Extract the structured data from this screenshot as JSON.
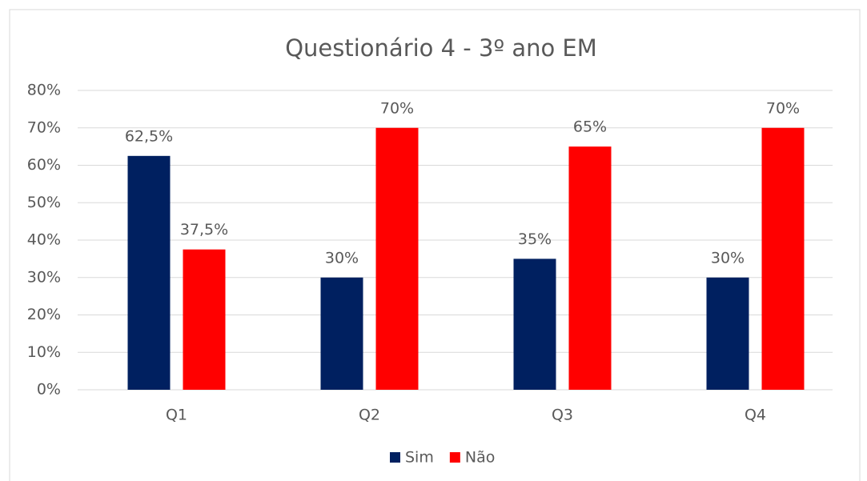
{
  "chart_data": {
    "type": "bar",
    "title": "Questionário 4 - 3º ano EM",
    "categories": [
      "Q1",
      "Q2",
      "Q3",
      "Q4"
    ],
    "series": [
      {
        "name": "Sim",
        "color": "#002060",
        "values": [
          62.5,
          30,
          35,
          30
        ],
        "value_labels": [
          "62,5%",
          "30%",
          "35%",
          "30%"
        ]
      },
      {
        "name": "Não",
        "color": "#ff0000",
        "values": [
          37.5,
          70,
          65,
          70
        ],
        "value_labels": [
          "37,5%",
          "70%",
          "65%",
          "70%"
        ]
      }
    ],
    "ylim": [
      0,
      80
    ],
    "yticks": [
      {
        "value": 0,
        "label": "0%"
      },
      {
        "value": 10,
        "label": "10%"
      },
      {
        "value": 20,
        "label": "20%"
      },
      {
        "value": 30,
        "label": "30%"
      },
      {
        "value": 40,
        "label": "40%"
      },
      {
        "value": 50,
        "label": "50%"
      },
      {
        "value": 60,
        "label": "60%"
      },
      {
        "value": 70,
        "label": "70%"
      },
      {
        "value": 80,
        "label": "80%"
      }
    ],
    "grid": true,
    "legend": "bottom"
  }
}
